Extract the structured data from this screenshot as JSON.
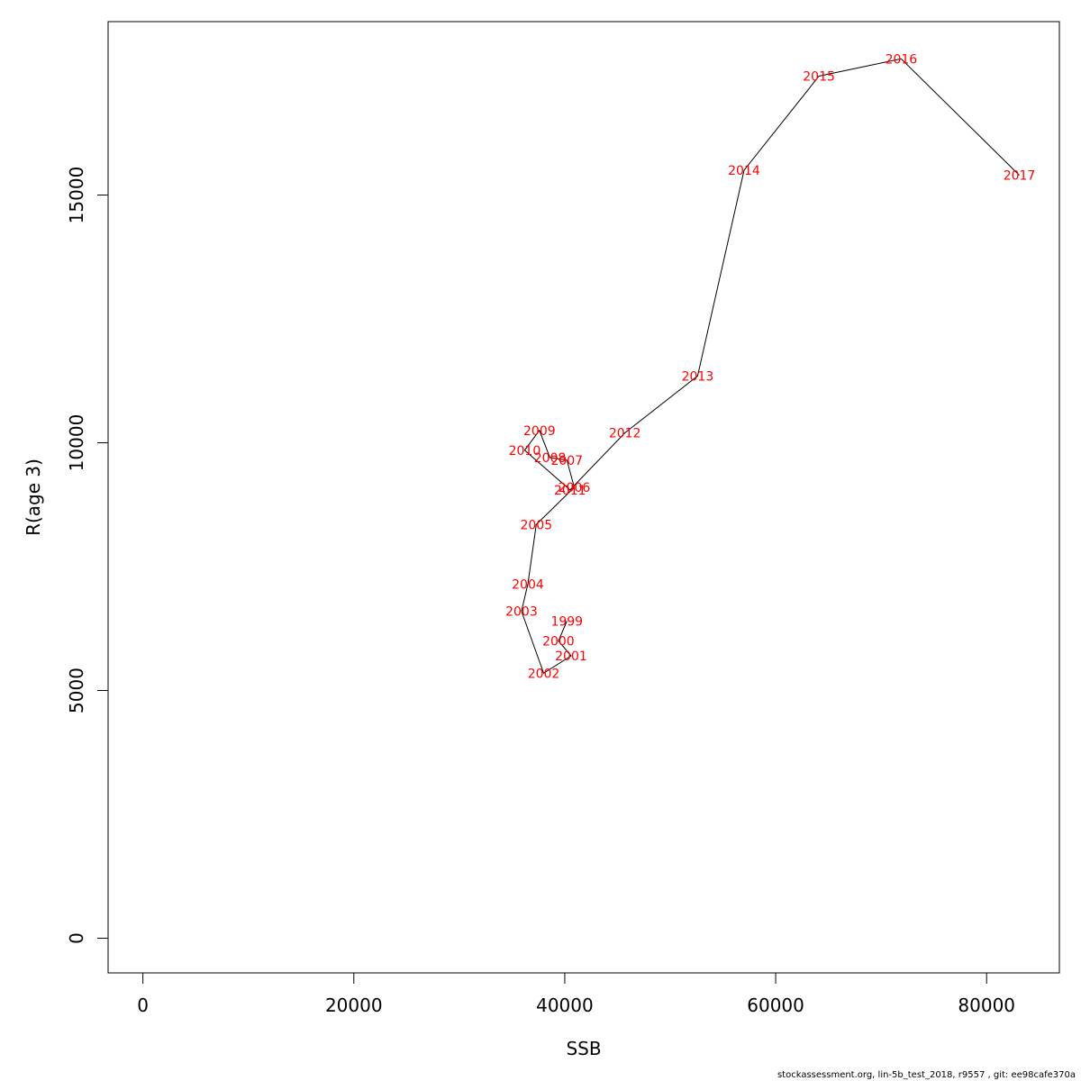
{
  "chart_data": {
    "type": "scatter",
    "title": "",
    "xlabel": "SSB",
    "ylabel": "R(age 3)",
    "xlim": [
      -3300,
      86900
    ],
    "ylim": [
      -700,
      18500
    ],
    "x_ticks": [
      0,
      20000,
      40000,
      60000,
      80000
    ],
    "y_ticks": [
      0,
      5000,
      10000,
      15000
    ],
    "label_color": "#ff0000",
    "line_color": "#000000",
    "series": [
      {
        "points": [
          {
            "label": "1999",
            "ssb": 40200,
            "r": 6400
          },
          {
            "label": "2000",
            "ssb": 39400,
            "r": 6000
          },
          {
            "label": "2001",
            "ssb": 40600,
            "r": 5700
          },
          {
            "label": "2002",
            "ssb": 38000,
            "r": 5350
          },
          {
            "label": "2003",
            "ssb": 35900,
            "r": 6600
          },
          {
            "label": "2004",
            "ssb": 36500,
            "r": 7150
          },
          {
            "label": "2005",
            "ssb": 37300,
            "r": 8350
          },
          {
            "label": "2006",
            "ssb": 40900,
            "r": 9100
          },
          {
            "label": "2007",
            "ssb": 40200,
            "r": 9650
          },
          {
            "label": "2008",
            "ssb": 38600,
            "r": 9700
          },
          {
            "label": "2009",
            "ssb": 37600,
            "r": 10250
          },
          {
            "label": "2010",
            "ssb": 36200,
            "r": 9850
          },
          {
            "label": "2011",
            "ssb": 40500,
            "r": 9050
          },
          {
            "label": "2012",
            "ssb": 45700,
            "r": 10200
          },
          {
            "label": "2013",
            "ssb": 52600,
            "r": 11350
          },
          {
            "label": "2014",
            "ssb": 57000,
            "r": 15500
          },
          {
            "label": "2015",
            "ssb": 64100,
            "r": 17400
          },
          {
            "label": "2016",
            "ssb": 71900,
            "r": 17750
          },
          {
            "label": "2017",
            "ssb": 83100,
            "r": 15400
          }
        ]
      }
    ]
  },
  "footer": "stockassessment.org, lin-5b_test_2018, r9557 , git: ee98cafe370a"
}
